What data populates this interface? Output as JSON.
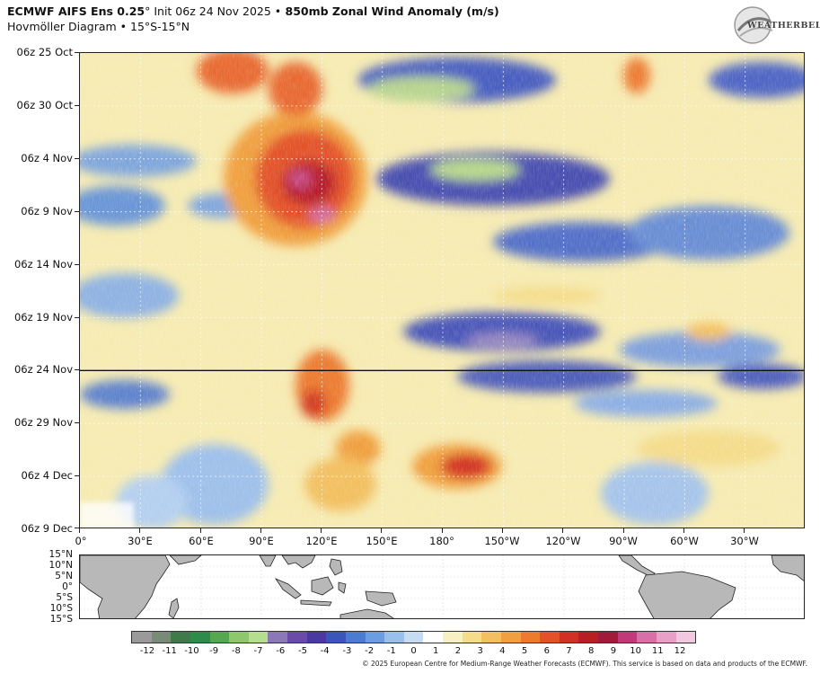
{
  "header": {
    "model": "ECMWF AIFS Ens 0.25",
    "degree": "°",
    "init": " Init 06z 24 Nov 2025 ",
    "bullet": "•",
    "variable": " 850mb Zonal Wind Anomaly (m/s)",
    "subtitle": "Hovmöller Diagram • 15°S-15°N"
  },
  "logo": {
    "text": "WEATHERBELL"
  },
  "hovmoller": {
    "y_labels": [
      "06z 25 Oct",
      "06z 30 Oct",
      "06z 4 Nov",
      "06z 9 Nov",
      "06z 14 Nov",
      "06z 19 Nov",
      "06z 24 Nov",
      "06z 29 Nov",
      "06z 4 Dec",
      "06z 9 Dec"
    ],
    "x_labels": [
      "0°",
      "30°E",
      "60°E",
      "90°E",
      "120°E",
      "150°E",
      "180°",
      "150°W",
      "120°W",
      "90°W",
      "60°W",
      "30°W"
    ],
    "init_line_label": "06z 24 Nov"
  },
  "map": {
    "lat_labels": [
      "15°N",
      "10°N",
      "5°N",
      "0°",
      "5°S",
      "10°S",
      "15°S"
    ],
    "land_color": "#b8b8b8"
  },
  "colorbar": {
    "labels": [
      "-12",
      "-11",
      "-10",
      "-9",
      "-8",
      "-7",
      "-6",
      "-5",
      "-4",
      "-3",
      "-2",
      "-1",
      "0",
      "1",
      "2",
      "3",
      "4",
      "5",
      "6",
      "7",
      "8",
      "9",
      "10",
      "11",
      "12"
    ],
    "colors": [
      "#9a9a9a",
      "#7a8a78",
      "#3f7a4a",
      "#2e8b4a",
      "#55a84f",
      "#8dc96c",
      "#b6de8f",
      "#8a78b8",
      "#6a4ca8",
      "#4a3aa0",
      "#3a56b8",
      "#4a7cd0",
      "#6a9ee0",
      "#98c0ec",
      "#c6dcf2",
      "#ffffff",
      "#f7f0c0",
      "#f4dc8a",
      "#f2c060",
      "#f0a040",
      "#ec7b30",
      "#e4502a",
      "#d23024",
      "#b81e22",
      "#a01a3a",
      "#c03a7a",
      "#d870a8",
      "#e8a0c8",
      "#f0c8e0"
    ]
  },
  "credit": "© 2025 European Centre for Medium-Range Weather Forecasts (ECMWF). This service is based on data and products of the ECMWF."
}
